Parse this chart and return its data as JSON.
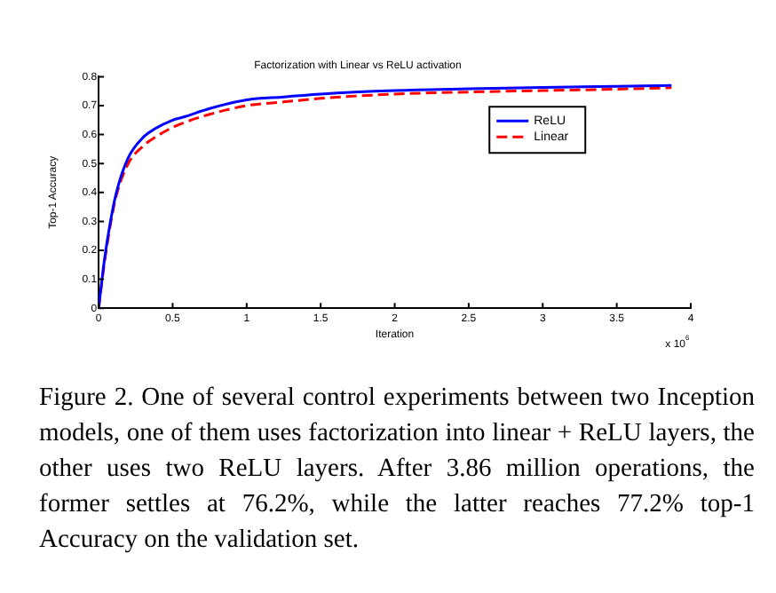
{
  "chart_data": {
    "type": "line",
    "title": "Factorization with Linear vs ReLU activation",
    "xlabel": "Iteration",
    "ylabel": "Top-1 Accuracy",
    "annotations": [
      "x 10$^{6}$",
      "Figure 2. One of several control experiments between two Inception models, one of them uses factorization into linear + ReLU layers, the other uses two ReLU layers. After 3.86 million operations, the former settles at 76.2%, while the latter reaches 77.2% top-1 Accuracy on the validation set."
    ],
    "x": [
      0,
      0.04,
      0.08,
      0.12,
      0.2,
      0.3,
      0.38,
      0.5,
      0.57,
      0.75,
      1.0,
      1.25,
      1.5,
      2.0,
      2.5,
      3.0,
      3.5,
      3.87
    ],
    "series": [
      {
        "name": "ReLU",
        "color": "#0000ff",
        "line_style": "solid",
        "values": [
          0,
          0.17,
          0.3,
          0.4,
          0.52,
          0.59,
          0.62,
          0.65,
          0.66,
          0.69,
          0.72,
          0.73,
          0.74,
          0.752,
          0.758,
          0.763,
          0.767,
          0.77
        ]
      },
      {
        "name": "Linear",
        "color": "#ff0000",
        "line_style": "dashed",
        "values": [
          0,
          0.16,
          0.29,
          0.39,
          0.5,
          0.56,
          0.59,
          0.625,
          0.64,
          0.67,
          0.7,
          0.713,
          0.725,
          0.74,
          0.747,
          0.752,
          0.757,
          0.762
        ]
      }
    ],
    "xlim": [
      0,
      4
    ],
    "xticks": [
      0,
      0.5,
      1,
      1.5,
      2,
      2.5,
      3,
      3.5,
      4
    ],
    "ylim": [
      0,
      0.8
    ],
    "yticks": [
      0,
      0.1,
      0.2,
      0.3,
      0.4,
      0.5,
      0.6,
      0.7,
      0.8
    ],
    "grid": false,
    "legend": "top right",
    "marker": "none"
  }
}
